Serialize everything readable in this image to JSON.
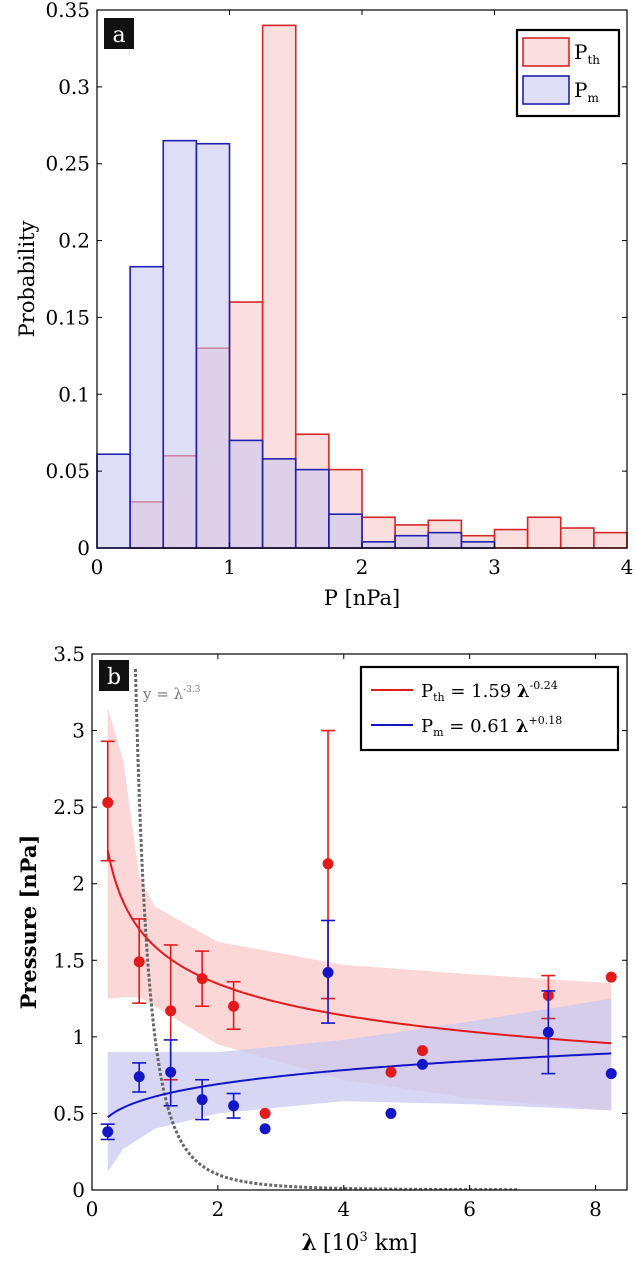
{
  "chart_data": [
    {
      "panel": "a",
      "type": "bar",
      "xlabel": "P  [nPa]",
      "ylabel": "Probability",
      "xlim": [
        0,
        4
      ],
      "ylim": [
        0,
        0.35
      ],
      "xticks": [
        0,
        1,
        2,
        3,
        4
      ],
      "xtick_labels": [
        "0",
        "1",
        "2",
        "3",
        "4"
      ],
      "yticks": [
        0,
        0.05,
        0.1,
        0.15,
        0.2,
        0.25,
        0.3,
        0.35
      ],
      "ytick_labels": [
        "0",
        "0.05",
        "0.1",
        "0.15",
        "0.2",
        "0.25",
        "0.3",
        "0.35"
      ],
      "bin_width": 0.25,
      "legend_position": "top-right",
      "series": [
        {
          "name": "P",
          "name_sub": "th",
          "color": "#d62728",
          "fill": "#f8c8c8",
          "bin_starts": [
            0.25,
            0.5,
            0.75,
            1.0,
            1.25,
            1.5,
            1.75,
            2.0,
            2.25,
            2.5,
            2.75,
            3.0,
            3.25,
            3.5,
            3.75
          ],
          "values": [
            0.03,
            0.06,
            0.13,
            0.16,
            0.34,
            0.074,
            0.051,
            0.02,
            0.015,
            0.018,
            0.008,
            0.012,
            0.02,
            0.013,
            0.01
          ]
        },
        {
          "name": "P",
          "name_sub": "m",
          "color": "#2020b0",
          "fill": "#c8c8f0",
          "bin_starts": [
            0.0,
            0.25,
            0.5,
            0.75,
            1.0,
            1.25,
            1.5,
            1.75,
            2.0,
            2.25,
            2.5,
            2.75
          ],
          "values": [
            0.061,
            0.183,
            0.265,
            0.263,
            0.07,
            0.058,
            0.051,
            0.022,
            0.004,
            0.008,
            0.01,
            0.004
          ]
        }
      ]
    },
    {
      "panel": "b",
      "type": "scatter",
      "xlabel_symbol": "λ",
      "xlabel_unit": "[10",
      "xlabel_exp": "3",
      "xlabel_end": " km]",
      "ylabel": "Pressure [nPa]",
      "xlim": [
        0,
        8.5
      ],
      "ylim": [
        0,
        3.5
      ],
      "xticks": [
        0,
        2,
        4,
        6,
        8
      ],
      "xtick_labels": [
        "0",
        "2",
        "4",
        "6",
        "8"
      ],
      "yticks": [
        0,
        0.5,
        1,
        1.5,
        2,
        2.5,
        3,
        3.5
      ],
      "ytick_labels": [
        "0",
        "0.5",
        "1",
        "1.5",
        "2",
        "2.5",
        "3",
        "3.5"
      ],
      "legend_position": "top-right",
      "annotation": {
        "base": "y = λ",
        "exp": "-3.3"
      },
      "series": [
        {
          "name": "P",
          "name_sub": "th",
          "fit_label": " = 1.59 ",
          "fit_symbol": "λ",
          "fit_exp": "-0.24",
          "color": "#e31a1c",
          "band_color": "#f9c9c9",
          "fit": {
            "a": 1.59,
            "b": -0.24
          },
          "band_upper": [
            [
              0.25,
              3.15
            ],
            [
              0.5,
              2.8
            ],
            [
              0.75,
              2.05
            ],
            [
              1.0,
              1.85
            ],
            [
              2.0,
              1.62
            ],
            [
              4.0,
              1.47
            ],
            [
              6.0,
              1.41
            ],
            [
              8.25,
              1.35
            ]
          ],
          "band_lower": [
            [
              0.25,
              1.25
            ],
            [
              0.5,
              1.26
            ],
            [
              0.75,
              1.26
            ],
            [
              1.0,
              1.2
            ],
            [
              2.0,
              0.95
            ],
            [
              4.0,
              0.72
            ],
            [
              6.0,
              0.6
            ],
            [
              8.25,
              0.52
            ]
          ],
          "points": [
            {
              "x": 0.25,
              "y": 2.53,
              "lo": 2.15,
              "hi": 2.93
            },
            {
              "x": 0.75,
              "y": 1.49,
              "lo": 1.22,
              "hi": 1.77
            },
            {
              "x": 1.25,
              "y": 1.17,
              "lo": 0.72,
              "hi": 1.6
            },
            {
              "x": 1.75,
              "y": 1.38,
              "lo": 1.2,
              "hi": 1.56
            },
            {
              "x": 2.25,
              "y": 1.2,
              "lo": 1.05,
              "hi": 1.36
            },
            {
              "x": 2.75,
              "y": 0.5
            },
            {
              "x": 3.75,
              "y": 2.13,
              "lo": 1.25,
              "hi": 3.0
            },
            {
              "x": 4.75,
              "y": 0.77
            },
            {
              "x": 5.25,
              "y": 0.91
            },
            {
              "x": 7.25,
              "y": 1.27,
              "lo": 1.12,
              "hi": 1.4
            },
            {
              "x": 8.25,
              "y": 1.39
            }
          ]
        },
        {
          "name": "P",
          "name_sub": "m",
          "fit_label": " = 0.61 ",
          "fit_symbol": "λ",
          "fit_exp": "+0.18",
          "color": "#1515c8",
          "band_color": "#c9c9f2",
          "fit": {
            "a": 0.61,
            "b": 0.18
          },
          "band_upper": [
            [
              0.25,
              0.9
            ],
            [
              1.0,
              0.9
            ],
            [
              2.0,
              0.9
            ],
            [
              4.0,
              0.98
            ],
            [
              6.0,
              1.1
            ],
            [
              8.25,
              1.25
            ]
          ],
          "band_lower": [
            [
              0.25,
              0.12
            ],
            [
              0.5,
              0.27
            ],
            [
              1.0,
              0.4
            ],
            [
              2.0,
              0.5
            ],
            [
              4.0,
              0.58
            ],
            [
              6.0,
              0.56
            ],
            [
              8.25,
              0.52
            ]
          ],
          "points": [
            {
              "x": 0.25,
              "y": 0.38,
              "lo": 0.33,
              "hi": 0.43
            },
            {
              "x": 0.75,
              "y": 0.74,
              "lo": 0.64,
              "hi": 0.83
            },
            {
              "x": 1.25,
              "y": 0.77,
              "lo": 0.55,
              "hi": 0.98
            },
            {
              "x": 1.75,
              "y": 0.59,
              "lo": 0.46,
              "hi": 0.72
            },
            {
              "x": 2.25,
              "y": 0.55,
              "lo": 0.47,
              "hi": 0.63
            },
            {
              "x": 2.75,
              "y": 0.4
            },
            {
              "x": 3.75,
              "y": 1.42,
              "lo": 1.09,
              "hi": 1.76
            },
            {
              "x": 4.75,
              "y": 0.5
            },
            {
              "x": 5.25,
              "y": 0.82
            },
            {
              "x": 7.25,
              "y": 1.03,
              "lo": 0.76,
              "hi": 1.3
            },
            {
              "x": 8.25,
              "y": 0.76
            }
          ]
        },
        {
          "name": "",
          "role": "power-law guide",
          "color": "#666666",
          "fit": {
            "a": 1,
            "b": -3.3
          }
        }
      ]
    }
  ]
}
